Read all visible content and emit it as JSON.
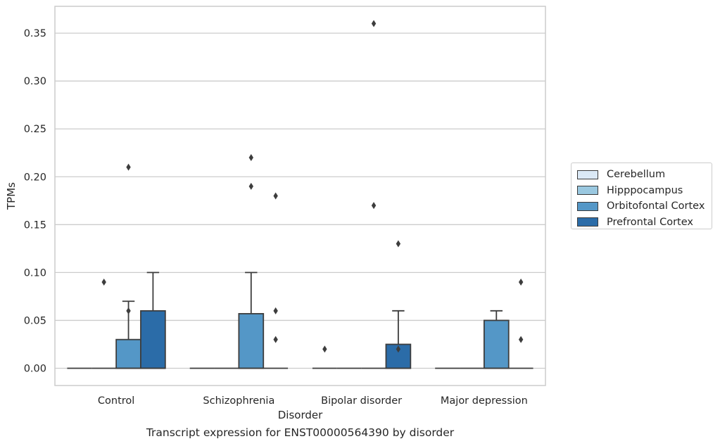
{
  "chart_data": {
    "type": "box",
    "caption": "Transcript expression for ENST00000564390 by disorder",
    "xlabel": "Disorder",
    "ylabel": "TPMs",
    "ylim": [
      -0.018,
      0.378
    ],
    "yticks": [
      0.0,
      0.05,
      0.1,
      0.15,
      0.2,
      0.25,
      0.3,
      0.35
    ],
    "ytick_labels": [
      "0.00",
      "0.05",
      "0.10",
      "0.15",
      "0.20",
      "0.25",
      "0.30",
      "0.35"
    ],
    "grid": "horizontal",
    "legend_position": "right",
    "categories": [
      "Control",
      "Schizophrenia",
      "Bipolar disorder",
      "Major depression"
    ],
    "series": [
      {
        "name": "Cerebellum",
        "color": "#dbe9f6",
        "boxes": [
          {
            "q1": 0,
            "median": 0,
            "q3": 0,
            "whisker_low": 0,
            "whisker_high": 0,
            "outliers": []
          },
          {
            "q1": 0,
            "median": 0,
            "q3": 0,
            "whisker_low": 0,
            "whisker_high": 0,
            "outliers": []
          },
          {
            "q1": 0,
            "median": 0,
            "q3": 0,
            "whisker_low": 0,
            "whisker_high": 0,
            "outliers": [
              0.02
            ]
          },
          {
            "q1": 0,
            "median": 0,
            "q3": 0,
            "whisker_low": 0,
            "whisker_high": 0,
            "outliers": []
          }
        ]
      },
      {
        "name": "Hipppocampus",
        "color": "#9ac8e0",
        "boxes": [
          {
            "q1": 0,
            "median": 0,
            "q3": 0,
            "whisker_low": 0,
            "whisker_high": 0,
            "outliers": [
              0.09
            ]
          },
          {
            "q1": 0,
            "median": 0,
            "q3": 0,
            "whisker_low": 0,
            "whisker_high": 0,
            "outliers": []
          },
          {
            "q1": 0,
            "median": 0,
            "q3": 0,
            "whisker_low": 0,
            "whisker_high": 0,
            "outliers": []
          },
          {
            "q1": 0,
            "median": 0,
            "q3": 0,
            "whisker_low": 0,
            "whisker_high": 0,
            "outliers": []
          }
        ]
      },
      {
        "name": "Orbitofontal Cortex",
        "color": "#5497c7",
        "boxes": [
          {
            "q1": 0,
            "median": 0,
            "q3": 0.03,
            "whisker_low": 0,
            "whisker_high": 0.07,
            "outliers": [
              0.06,
              0.21
            ]
          },
          {
            "q1": 0,
            "median": 0,
            "q3": 0.057,
            "whisker_low": 0,
            "whisker_high": 0.1,
            "outliers": [
              0.22,
              0.19
            ]
          },
          {
            "q1": 0,
            "median": 0,
            "q3": 0,
            "whisker_low": 0,
            "whisker_high": 0,
            "outliers": [
              0.17,
              0.36
            ]
          },
          {
            "q1": 0,
            "median": 0,
            "q3": 0.05,
            "whisker_low": 0,
            "whisker_high": 0.06,
            "outliers": []
          }
        ]
      },
      {
        "name": "Prefrontal Cortex",
        "color": "#2b6ca8",
        "boxes": [
          {
            "q1": 0,
            "median": 0,
            "q3": 0.06,
            "whisker_low": 0,
            "whisker_high": 0.1,
            "outliers": []
          },
          {
            "q1": 0,
            "median": 0,
            "q3": 0,
            "whisker_low": 0,
            "whisker_high": 0,
            "outliers": [
              0.18,
              0.06,
              0.03
            ]
          },
          {
            "q1": 0,
            "median": 0,
            "q3": 0.025,
            "whisker_low": 0,
            "whisker_high": 0.06,
            "outliers": [
              0.02,
              0.13
            ]
          },
          {
            "q1": 0,
            "median": 0,
            "q3": 0,
            "whisker_low": 0,
            "whisker_high": 0,
            "outliers": [
              0.09,
              0.03
            ]
          }
        ]
      }
    ]
  }
}
